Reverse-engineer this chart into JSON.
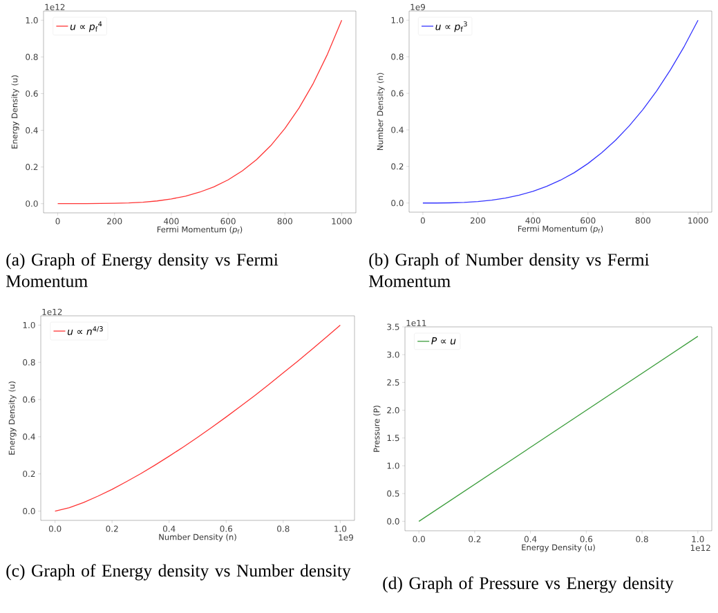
{
  "chart_data": [
    {
      "type": "line",
      "title": "(a) Graph of Energy density vs Fermi Momentum",
      "xlabel": "Fermi Momentum (*p*$_{f}$)",
      "ylabel": "Energy Density (u)",
      "annotations": [
        "1e12"
      ],
      "x": [
        0,
        50,
        100,
        150,
        200,
        250,
        300,
        350,
        400,
        450,
        500,
        550,
        600,
        650,
        700,
        750,
        800,
        850,
        900,
        950,
        1000
      ],
      "series": [
        {
          "name": "*u* ∝ *p*$_{f}$$^{4}$",
          "color": "#ff3333",
          "values": [
            0,
            0,
            0,
            0.001,
            0.002,
            0.004,
            0.008,
            0.015,
            0.026,
            0.041,
            0.063,
            0.092,
            0.13,
            0.179,
            0.24,
            0.316,
            0.41,
            0.522,
            0.656,
            0.815,
            1.0
          ]
        }
      ],
      "xlim": [
        -50,
        1050
      ],
      "ylim": [
        -0.05,
        1.05
      ],
      "xticks": [
        0,
        200,
        400,
        600,
        800,
        1000
      ],
      "yticks": [
        {
          "value": 0,
          "label": "0.0"
        },
        {
          "value": 0.2,
          "label": "0.2"
        },
        {
          "value": 0.4,
          "label": "0.4"
        },
        {
          "value": 0.6,
          "label": "0.6"
        },
        {
          "value": 0.8,
          "label": "0.8"
        },
        {
          "value": 1,
          "label": "1.0"
        }
      ],
      "legend": "top left",
      "marker": "none",
      "line_style": "solid"
    },
    {
      "type": "line",
      "title": "(b) Graph of Number density vs Fermi Momentum",
      "xlabel": "Fermi Momentum (*p*$_{f}$)",
      "ylabel": "Number Density (n)",
      "annotations": [
        "1e9"
      ],
      "x": [
        0,
        50,
        100,
        150,
        200,
        250,
        300,
        350,
        400,
        450,
        500,
        550,
        600,
        650,
        700,
        750,
        800,
        850,
        900,
        950,
        1000
      ],
      "series": [
        {
          "name": "*u* ∝ *p*$_{f}$$^{3}$",
          "color": "#3333ff",
          "values": [
            0,
            0,
            0.001,
            0.003,
            0.008,
            0.016,
            0.027,
            0.043,
            0.064,
            0.091,
            0.125,
            0.166,
            0.216,
            0.275,
            0.343,
            0.422,
            0.512,
            0.614,
            0.729,
            0.857,
            1.0
          ]
        }
      ],
      "xlim": [
        -50,
        1050
      ],
      "ylim": [
        -0.05,
        1.05
      ],
      "xticks": [
        0,
        200,
        400,
        600,
        800,
        1000
      ],
      "yticks": [
        {
          "value": 0,
          "label": "0.0"
        },
        {
          "value": 0.2,
          "label": "0.2"
        },
        {
          "value": 0.4,
          "label": "0.4"
        },
        {
          "value": 0.6,
          "label": "0.6"
        },
        {
          "value": 0.8,
          "label": "0.8"
        },
        {
          "value": 1,
          "label": "1.0"
        }
      ],
      "legend": "top left",
      "marker": "none",
      "line_style": "solid"
    },
    {
      "type": "line",
      "title": "(c) Graph of Energy density vs Number density",
      "xlabel": "Number Density (n)",
      "ylabel": "Energy Density (u)",
      "annotations": [
        "1e12",
        "1e9"
      ],
      "x": [
        0,
        0.05,
        0.1,
        0.15,
        0.2,
        0.25,
        0.3,
        0.35,
        0.4,
        0.45,
        0.5,
        0.55,
        0.6,
        0.65,
        0.7,
        0.75,
        0.8,
        0.85,
        0.9,
        0.95,
        1.0
      ],
      "series": [
        {
          "name": "*u* ∝ *n*$^{4/3}$",
          "color": "#ff3333",
          "values": [
            0,
            0.018,
            0.046,
            0.08,
            0.117,
            0.158,
            0.201,
            0.247,
            0.295,
            0.345,
            0.397,
            0.451,
            0.506,
            0.563,
            0.621,
            0.681,
            0.743,
            0.805,
            0.869,
            0.934,
            1.0
          ]
        }
      ],
      "xlim": [
        -0.05,
        1.05
      ],
      "ylim": [
        -0.05,
        1.05
      ],
      "xticks": [
        {
          "value": 0,
          "label": "0.0"
        },
        {
          "value": 0.2,
          "label": "0.2"
        },
        {
          "value": 0.4,
          "label": "0.4"
        },
        {
          "value": 0.6,
          "label": "0.6"
        },
        {
          "value": 0.8,
          "label": "0.8"
        },
        {
          "value": 1,
          "label": "1.0"
        }
      ],
      "yticks": [
        {
          "value": 0,
          "label": "0.0"
        },
        {
          "value": 0.2,
          "label": "0.2"
        },
        {
          "value": 0.4,
          "label": "0.4"
        },
        {
          "value": 0.6,
          "label": "0.6"
        },
        {
          "value": 0.8,
          "label": "0.8"
        },
        {
          "value": 1,
          "label": "1.0"
        }
      ],
      "legend": "top left",
      "marker": "none",
      "line_style": "solid"
    },
    {
      "type": "line",
      "title": "(d) Graph of Pressure vs Energy density",
      "xlabel": "Energy Density (u)",
      "ylabel": "Pressure (P)",
      "annotations": [
        "1e11",
        "1e12"
      ],
      "x": [
        0,
        1.0
      ],
      "series": [
        {
          "name": "*P* ∝ *u*",
          "color": "#3a9c3a",
          "values": [
            0,
            3.33
          ]
        }
      ],
      "xlim": [
        -0.05,
        1.05
      ],
      "ylim": [
        -0.17,
        3.5
      ],
      "xticks": [
        {
          "value": 0,
          "label": "0.0"
        },
        {
          "value": 0.2,
          "label": "0.2"
        },
        {
          "value": 0.4,
          "label": "0.4"
        },
        {
          "value": 0.6,
          "label": "0.6"
        },
        {
          "value": 0.8,
          "label": "0.8"
        },
        {
          "value": 1,
          "label": "1.0"
        }
      ],
      "yticks": [
        {
          "value": 0,
          "label": "0.0"
        },
        {
          "value": 0.5,
          "label": "0.5"
        },
        {
          "value": 1,
          "label": "1.0"
        },
        {
          "value": 1.5,
          "label": "1.5"
        },
        {
          "value": 2,
          "label": "2.0"
        },
        {
          "value": 2.5,
          "label": "2.5"
        },
        {
          "value": 3,
          "label": "3.0"
        },
        {
          "value": 3.5,
          "label": "3.5"
        }
      ],
      "legend": "top left",
      "marker": "none",
      "line_style": "solid"
    }
  ]
}
